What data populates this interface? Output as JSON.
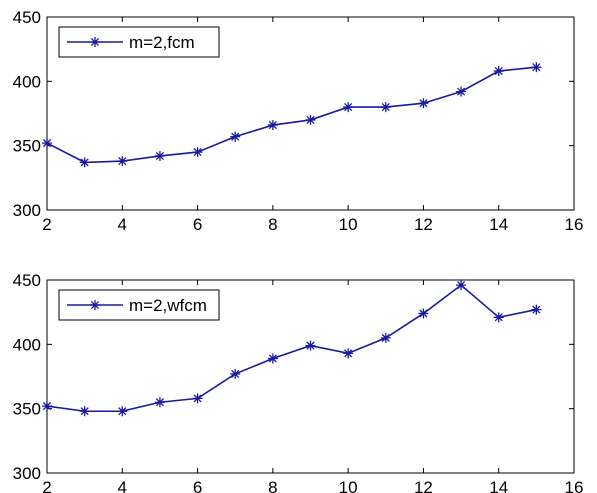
{
  "chart_data": [
    {
      "type": "line",
      "title": "",
      "xlabel": "",
      "ylabel": "",
      "xlim": [
        2,
        16
      ],
      "ylim": [
        300,
        450
      ],
      "xticks": [
        2,
        4,
        6,
        8,
        10,
        12,
        14,
        16
      ],
      "yticks": [
        300,
        350,
        400,
        450
      ],
      "legend": "top-left",
      "grid": false,
      "series": [
        {
          "name": "m=2,fcm",
          "color": "#1a1a9e",
          "marker": "star",
          "x": [
            2,
            3,
            4,
            5,
            6,
            7,
            8,
            9,
            10,
            11,
            12,
            13,
            14,
            15
          ],
          "y": [
            352,
            337,
            338,
            342,
            345,
            357,
            366,
            370,
            380,
            380,
            383,
            392,
            408,
            411
          ]
        }
      ]
    },
    {
      "type": "line",
      "title": "",
      "xlabel": "",
      "ylabel": "",
      "xlim": [
        2,
        16
      ],
      "ylim": [
        300,
        450
      ],
      "xticks": [
        2,
        4,
        6,
        8,
        10,
        12,
        14,
        16
      ],
      "yticks": [
        300,
        350,
        400,
        450
      ],
      "legend": "top-left",
      "grid": false,
      "series": [
        {
          "name": "m=2,wfcm",
          "color": "#1a1a9e",
          "marker": "star",
          "x": [
            2,
            3,
            4,
            5,
            6,
            7,
            8,
            9,
            10,
            11,
            12,
            13,
            14,
            15
          ],
          "y": [
            352,
            348,
            348,
            355,
            358,
            377,
            389,
            399,
            393,
            405,
            424,
            446,
            421,
            427
          ]
        }
      ]
    }
  ]
}
